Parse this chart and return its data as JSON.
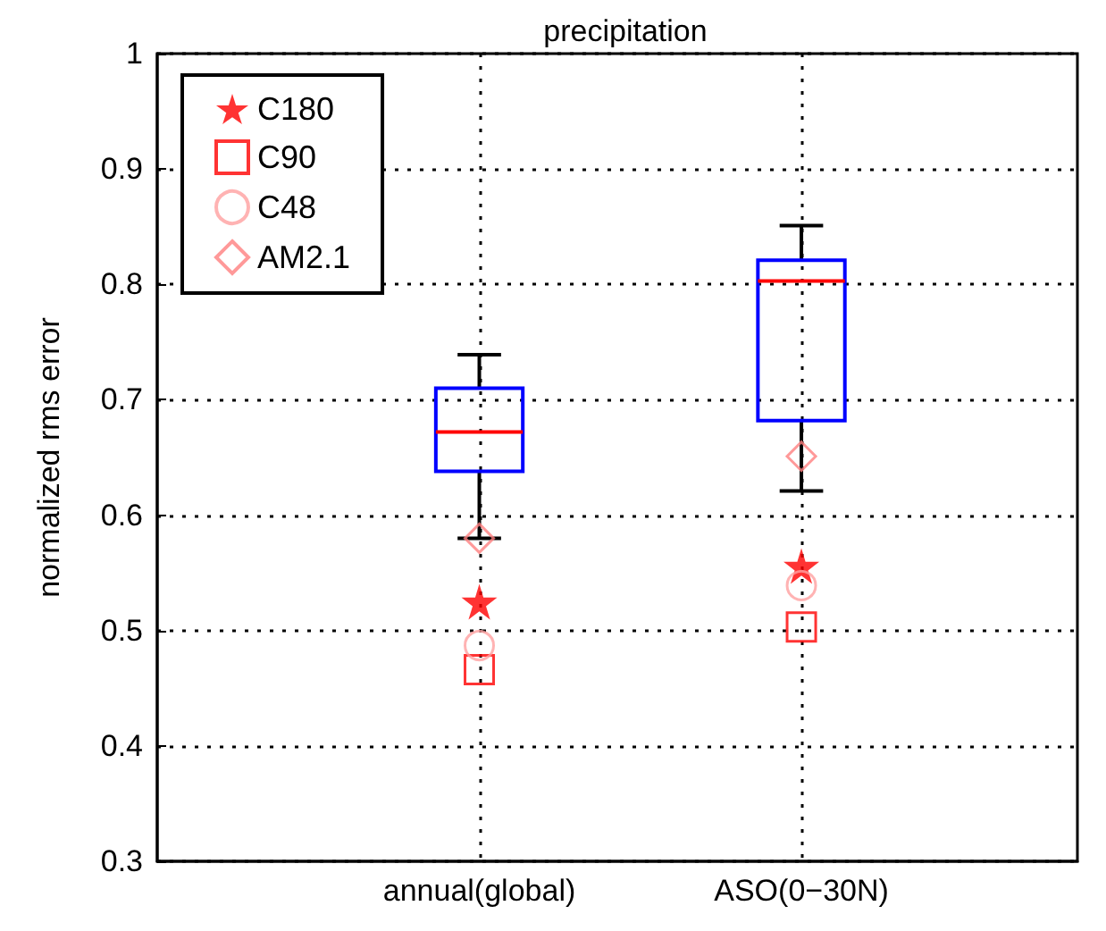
{
  "chart_data": {
    "type": "box",
    "title": "precipitation",
    "ylabel": "normalized rms error",
    "categories": [
      "annual(global)",
      "ASO(0−30N)"
    ],
    "ylim": [
      0.3,
      1
    ],
    "yticks": [
      0.3,
      0.4,
      0.5,
      0.6,
      0.7,
      0.8,
      0.9,
      1
    ],
    "grid": true,
    "legend": "top left",
    "series": [
      {
        "type": "box",
        "color": "#0000ff",
        "boxes": [
          {
            "low": 0.58,
            "q1": 0.638,
            "median": 0.672,
            "q3": 0.71,
            "high": 0.739
          },
          {
            "low": 0.621,
            "q1": 0.682,
            "median": 0.803,
            "q3": 0.821,
            "high": 0.851
          }
        ]
      },
      {
        "type": "scatter",
        "name": "C180",
        "color": "#ff0000",
        "marker": "star",
        "x": [
          "annual(global)",
          "ASO(0−30N)"
        ],
        "values": [
          0.525,
          0.556
        ]
      },
      {
        "type": "scatter",
        "name": "C90",
        "color": "#ff0000",
        "marker": "square",
        "x": [
          "annual(global)",
          "ASO(0−30N)"
        ],
        "values": [
          0.466,
          0.503
        ]
      },
      {
        "type": "scatter",
        "name": "C48",
        "color": "#ffa0a0",
        "marker": "circle",
        "x": [
          "annual(global)",
          "ASO(0−30N)"
        ],
        "values": [
          0.487,
          0.539
        ]
      },
      {
        "type": "scatter",
        "name": "AM2.1",
        "color": "#ff8080",
        "marker": "diamond",
        "x": [
          "annual(global)",
          "ASO(0−30N)"
        ],
        "values": [
          0.58,
          0.651
        ]
      }
    ]
  }
}
